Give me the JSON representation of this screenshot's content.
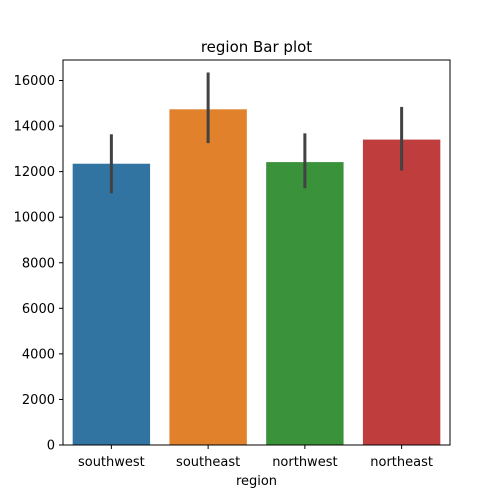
{
  "chart_data": {
    "type": "bar",
    "title": "region Bar plot",
    "xlabel": "region",
    "ylabel": "",
    "categories": [
      "southwest",
      "southeast",
      "northwest",
      "northeast"
    ],
    "values": [
      12347,
      14735,
      12418,
      13406
    ],
    "error_low": [
      11050,
      13250,
      11270,
      12050
    ],
    "error_high": [
      13640,
      16350,
      13680,
      14840
    ],
    "colors": [
      "#3274a1",
      "#e1812c",
      "#3a923a",
      "#c03d3e"
    ],
    "error_color": "#424242",
    "ylim": [
      0,
      16900
    ],
    "yticks": [
      0,
      2000,
      4000,
      6000,
      8000,
      10000,
      12000,
      14000,
      16000
    ],
    "ytick_labels": [
      "0",
      "2000",
      "4000",
      "6000",
      "8000",
      "10000",
      "12000",
      "14000",
      "16000"
    ],
    "grid": false,
    "legend": false
  }
}
